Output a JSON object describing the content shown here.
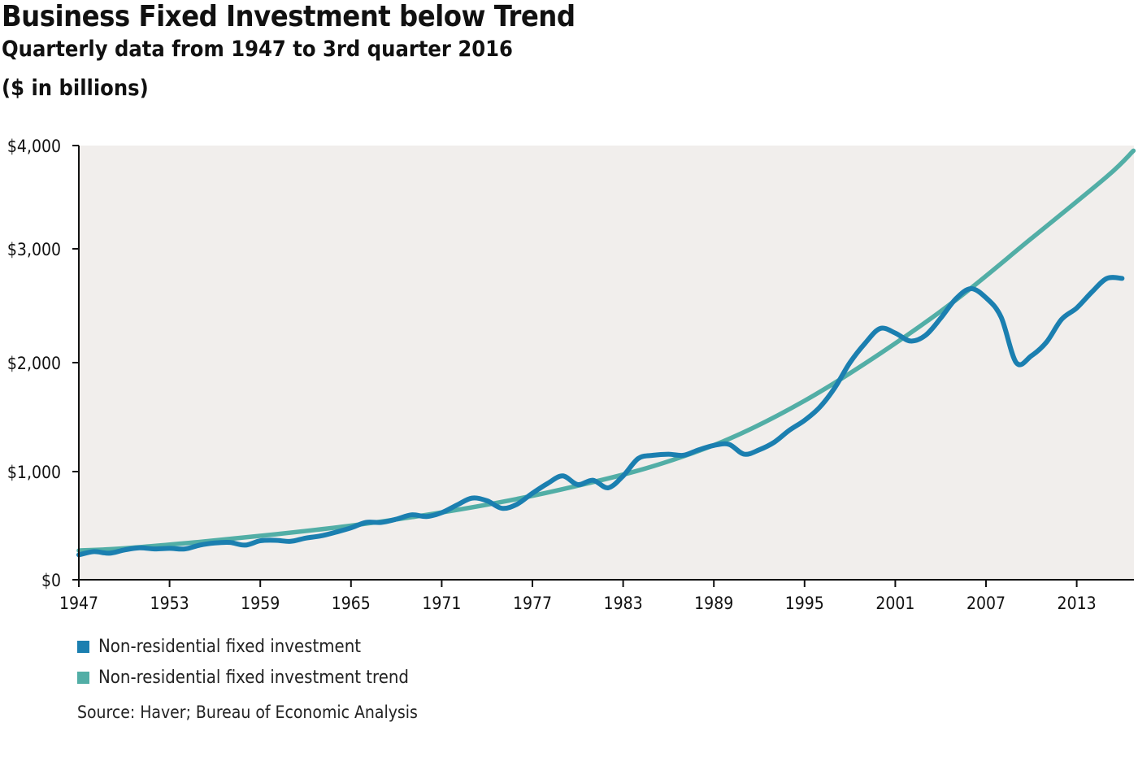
{
  "title": "Business Fixed Investment below Trend",
  "subtitle": "Quarterly data from 1947 to 3rd quarter 2016",
  "units": "($ in billions)",
  "source": "Source: Haver; Bureau of Economic Analysis",
  "colors": {
    "investment": "#1b7fb0",
    "trend": "#52aea6",
    "plot_background": "#f1eeec"
  },
  "chart_data": {
    "type": "line",
    "title": "Business Fixed Investment below Trend",
    "subtitle": "Quarterly data from 1947 to 3rd quarter 2016",
    "xlim": [
      1947,
      2016.75
    ],
    "ylim": [
      0,
      4000
    ],
    "y_scale": "piecewise-linear",
    "y_ticks": [
      0,
      1000,
      2000,
      3000,
      4000
    ],
    "y_tick_labels": [
      "$0",
      "$1,000",
      "$2,000",
      "$3,000",
      "$4,000"
    ],
    "x_ticks": [
      1947,
      1953,
      1959,
      1965,
      1971,
      1977,
      1983,
      1989,
      1995,
      2001,
      2007,
      2013
    ],
    "x_tick_labels": [
      "1947",
      "1953",
      "1959",
      "1965",
      "1971",
      "1977",
      "1983",
      "1989",
      "1995",
      "2001",
      "2007",
      "2013"
    ],
    "grid": false,
    "legend_position": "bottom-left",
    "series": [
      {
        "name": "Non-residential fixed investment",
        "color": "#1b7fb0",
        "x": [
          1947,
          1948,
          1949,
          1950,
          1951,
          1952,
          1953,
          1954,
          1955,
          1956,
          1957,
          1958,
          1959,
          1960,
          1961,
          1962,
          1963,
          1964,
          1965,
          1966,
          1967,
          1968,
          1969,
          1970,
          1971,
          1972,
          1973,
          1974,
          1975,
          1976,
          1977,
          1978,
          1979,
          1980,
          1981,
          1982,
          1983,
          1984,
          1985,
          1986,
          1987,
          1988,
          1989,
          1990,
          1991,
          1992,
          1993,
          1994,
          1995,
          1996,
          1997,
          1998,
          1999,
          2000,
          2001,
          2002,
          2003,
          2004,
          2005,
          2006,
          2007,
          2008,
          2009,
          2010,
          2011,
          2012,
          2013,
          2014,
          2015,
          2016
        ],
        "values": [
          230,
          260,
          245,
          275,
          295,
          285,
          290,
          285,
          320,
          340,
          345,
          320,
          360,
          365,
          355,
          385,
          405,
          440,
          480,
          530,
          530,
          560,
          600,
          585,
          620,
          690,
          755,
          730,
          660,
          700,
          800,
          890,
          960,
          880,
          920,
          850,
          960,
          1120,
          1150,
          1160,
          1150,
          1200,
          1240,
          1250,
          1160,
          1200,
          1270,
          1380,
          1470,
          1590,
          1770,
          2000,
          2170,
          2300,
          2260,
          2190,
          2240,
          2390,
          2560,
          2650,
          2570,
          2400,
          2000,
          2060,
          2180,
          2380,
          2480,
          2620,
          2740,
          2740
        ]
      },
      {
        "name": "Non-residential fixed investment trend",
        "color": "#52aea6",
        "x": [
          1947,
          1950,
          1955,
          1960,
          1965,
          1970,
          1975,
          1980,
          1985,
          1990,
          1995,
          2000,
          2005,
          2010,
          2015,
          2016.75
        ],
        "values": [
          270,
          290,
          350,
          420,
          500,
          600,
          720,
          870,
          1050,
          1300,
          1650,
          2080,
          2550,
          3100,
          3700,
          3950
        ]
      }
    ]
  }
}
